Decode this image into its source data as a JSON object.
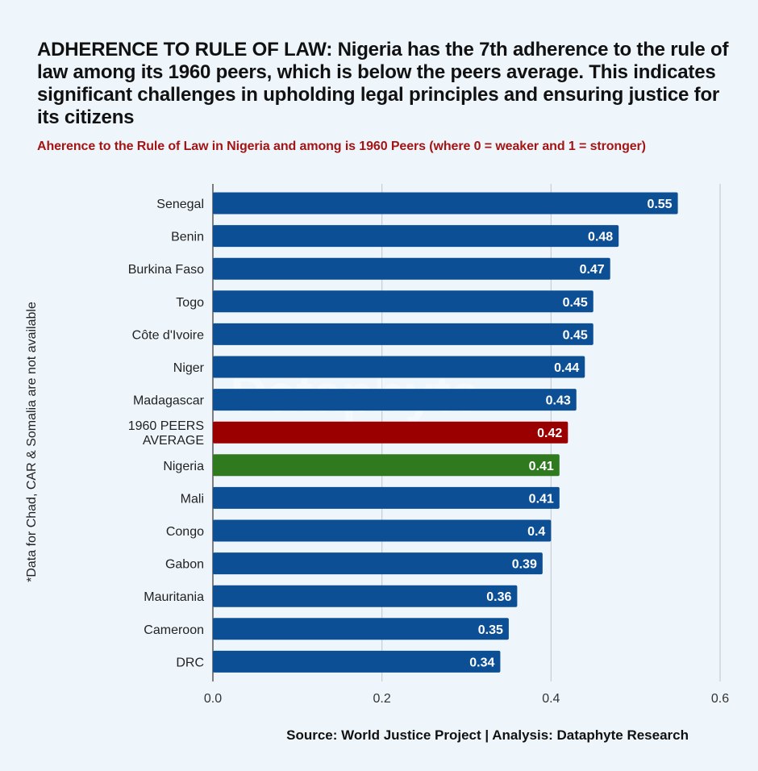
{
  "title": "ADHERENCE TO RULE OF LAW: Nigeria has the 7th adherence to the rule of law among its 1960 peers, which is below the peers average. This indicates significant challenges in upholding legal principles and ensuring justice for its citizens",
  "subtitle": "Aherence to the Rule of Law in Nigeria and among is 1960 Peers (where 0 = weaker and 1 = stronger)",
  "side_note": "*Data for Chad, CAR & Somalia are not available",
  "source": "Source: World Justice Project | Analysis: Dataphyte Research",
  "watermark": "Dataphyte",
  "colors": {
    "default_bar": "#0d4f95",
    "average_bar": "#9b0000",
    "nigeria_bar": "#2f7a1f",
    "subtitle": "#a31515",
    "background": "#eef6fc"
  },
  "chart_data": {
    "type": "bar",
    "orientation": "horizontal",
    "categories": [
      "Senegal",
      "Benin",
      "Burkina Faso",
      "Togo",
      "Côte d'Ivoire",
      "Niger",
      "Madagascar",
      "1960 PEERS AVERAGE",
      "Nigeria",
      "Mali",
      "Congo",
      "Gabon",
      "Mauritania",
      "Cameroon",
      "DRC"
    ],
    "values": [
      0.55,
      0.48,
      0.47,
      0.45,
      0.45,
      0.44,
      0.43,
      0.42,
      0.41,
      0.41,
      0.4,
      0.39,
      0.36,
      0.35,
      0.34
    ],
    "value_labels": [
      "0.55",
      "0.48",
      "0.47",
      "0.45",
      "0.45",
      "0.44",
      "0.43",
      "0.42",
      "0.41",
      "0.41",
      "0.4",
      "0.39",
      "0.36",
      "0.35",
      "0.34"
    ],
    "highlight": {
      "1960 PEERS AVERAGE": "average_bar",
      "Nigeria": "nigeria_bar"
    },
    "xlim": [
      0,
      0.6
    ],
    "xticks": [
      0,
      0.2,
      0.4,
      0.6
    ],
    "xtick_labels": [
      "0.0",
      "0.2",
      "0.4",
      "0.6"
    ],
    "grid": true,
    "legend": "none"
  }
}
